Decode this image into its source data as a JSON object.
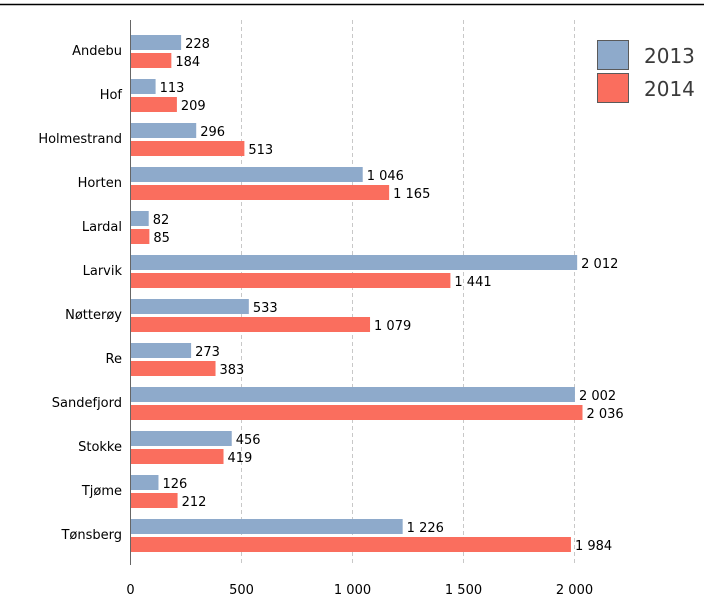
{
  "chart_data": {
    "type": "bar",
    "orientation": "horizontal",
    "categories": [
      "Andebu",
      "Hof",
      "Holmestrand",
      "Horten",
      "Lardal",
      "Larvik",
      "Nøtterøy",
      "Re",
      "Sandefjord",
      "Stokke",
      "Tjøme",
      "Tønsberg"
    ],
    "series": [
      {
        "name": "2013",
        "color": "#8eaacb",
        "values": [
          228,
          113,
          296,
          1046,
          82,
          2012,
          533,
          273,
          2002,
          456,
          126,
          1226
        ],
        "labels": [
          "228",
          "113",
          "296",
          "1 046",
          "82",
          "2 012",
          "533",
          "273",
          "2 002",
          "456",
          "126",
          "1 226"
        ]
      },
      {
        "name": "2014",
        "color": "#fa6e5e",
        "values": [
          184,
          209,
          513,
          1165,
          85,
          1441,
          1079,
          383,
          2036,
          419,
          212,
          1984
        ],
        "labels": [
          "184",
          "209",
          "513",
          "1 165",
          "85",
          "1 441",
          "1 079",
          "383",
          "2 036",
          "419",
          "212",
          "1 984"
        ]
      }
    ],
    "xlim": [
      0,
      2000
    ],
    "ticks": [
      0,
      500,
      1000,
      1500,
      2000
    ],
    "tick_labels": [
      "0",
      "500",
      "1 000",
      "1 500",
      "2 000"
    ],
    "grid": true,
    "legend": "top-right",
    "title": "",
    "xlabel": "",
    "ylabel": ""
  }
}
